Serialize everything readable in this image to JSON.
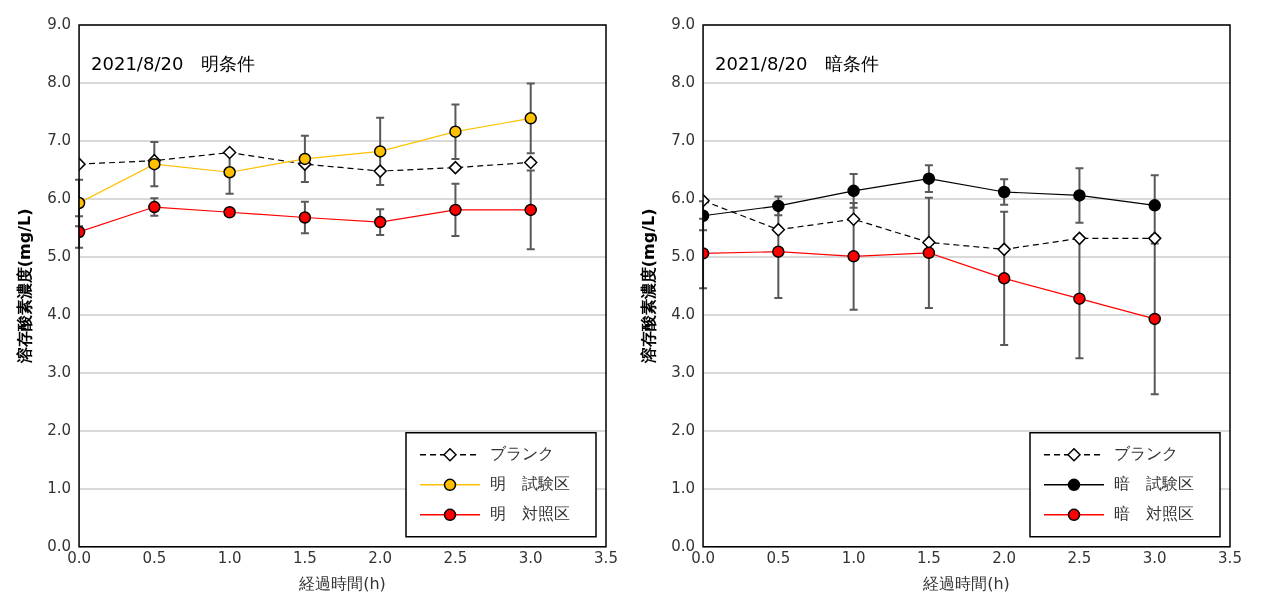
{
  "chart_data": [
    {
      "type": "line",
      "title": "2021/8/20　明条件",
      "xlabel": "経過時間(h)",
      "ylabel": "溶存酸素濃度(mg/L)",
      "x": [
        0,
        0.5,
        1,
        1.5,
        2,
        2.5,
        3
      ],
      "series": [
        {
          "name": "ブランク",
          "color": "#000000",
          "marker": "diamond",
          "line_style": "dashed",
          "values": [
            6.6,
            6.66,
            6.8,
            6.6,
            6.48,
            6.54,
            6.63
          ]
        },
        {
          "name": "明　試験区",
          "color": "#ffc000",
          "marker": "circle",
          "line_style": "solid",
          "values": [
            5.93,
            6.6,
            6.46,
            6.69,
            6.82,
            7.16,
            7.39
          ],
          "errors": [
            0.4,
            0.38,
            0.37,
            0.4,
            0.58,
            0.47,
            0.6
          ]
        },
        {
          "name": "明　対照区",
          "color": "#ff0000",
          "marker": "circle",
          "line_style": "solid",
          "values": [
            5.43,
            5.86,
            5.77,
            5.68,
            5.6,
            5.81,
            5.81
          ],
          "errors": [
            0.27,
            0.15,
            null,
            0.27,
            0.22,
            0.45,
            0.68
          ]
        }
      ],
      "xlim": [
        0,
        3.5
      ],
      "xticks": [
        {
          "value": 0,
          "label": "0.0"
        },
        {
          "value": 0.5,
          "label": "0.5"
        },
        {
          "value": 1,
          "label": "1.0"
        },
        {
          "value": 1.5,
          "label": "1.5"
        },
        {
          "value": 2,
          "label": "2.0"
        },
        {
          "value": 2.5,
          "label": "2.5"
        },
        {
          "value": 3,
          "label": "3.0"
        },
        {
          "value": 3.5,
          "label": "3.5"
        }
      ],
      "ylim": [
        0,
        9
      ],
      "yticks": [
        {
          "value": 0,
          "label": "0.0"
        },
        {
          "value": 1,
          "label": "1.0"
        },
        {
          "value": 2,
          "label": "2.0"
        },
        {
          "value": 3,
          "label": "3.0"
        },
        {
          "value": 4,
          "label": "4.0"
        },
        {
          "value": 5,
          "label": "5.0"
        },
        {
          "value": 6,
          "label": "6.0"
        },
        {
          "value": 7,
          "label": "7.0"
        },
        {
          "value": 8,
          "label": "8.0"
        },
        {
          "value": 9,
          "label": "9.0"
        }
      ],
      "grid": "y",
      "legend": "bottom right"
    },
    {
      "type": "line",
      "title": "2021/8/20　暗条件",
      "xlabel": "経過時間(h)",
      "ylabel": "溶存酸素濃度(mg/L)",
      "x": [
        0,
        0.5,
        1,
        1.5,
        2,
        2.5,
        3
      ],
      "series": [
        {
          "name": "ブランク",
          "color": "#000000",
          "marker": "diamond",
          "line_style": "dashed",
          "values": [
            5.97,
            5.47,
            5.65,
            5.25,
            5.13,
            5.32,
            5.32
          ]
        },
        {
          "name": "暗　試験区",
          "color": "#000000",
          "marker": "circle",
          "line_style": "solid",
          "values": [
            5.71,
            5.88,
            6.14,
            6.35,
            6.12,
            6.06,
            5.89
          ],
          "errors": [
            0.25,
            0.16,
            0.29,
            0.23,
            0.22,
            0.47,
            0.52
          ]
        },
        {
          "name": "暗　対照区",
          "color": "#ff0000",
          "marker": "circle",
          "line_style": "solid",
          "values": [
            5.06,
            5.09,
            5.01,
            5.07,
            4.63,
            4.28,
            3.93
          ],
          "errors": [
            0.6,
            0.8,
            0.92,
            0.95,
            1.15,
            1.03,
            1.3
          ]
        }
      ],
      "xlim": [
        0,
        3.5
      ],
      "xticks": [
        {
          "value": 0,
          "label": "0.0"
        },
        {
          "value": 0.5,
          "label": "0.5"
        },
        {
          "value": 1,
          "label": "1.0"
        },
        {
          "value": 1.5,
          "label": "1.5"
        },
        {
          "value": 2,
          "label": "2.0"
        },
        {
          "value": 2.5,
          "label": "2.5"
        },
        {
          "value": 3,
          "label": "3.0"
        },
        {
          "value": 3.5,
          "label": "3.5"
        }
      ],
      "ylim": [
        0,
        9
      ],
      "yticks": [
        {
          "value": 0,
          "label": "0.0"
        },
        {
          "value": 1,
          "label": "1.0"
        },
        {
          "value": 2,
          "label": "2.0"
        },
        {
          "value": 3,
          "label": "3.0"
        },
        {
          "value": 4,
          "label": "4.0"
        },
        {
          "value": 5,
          "label": "5.0"
        },
        {
          "value": 6,
          "label": "6.0"
        },
        {
          "value": 7,
          "label": "7.0"
        },
        {
          "value": 8,
          "label": "8.0"
        },
        {
          "value": 9,
          "label": "9.0"
        }
      ],
      "grid": "y",
      "legend": "bottom right"
    }
  ]
}
